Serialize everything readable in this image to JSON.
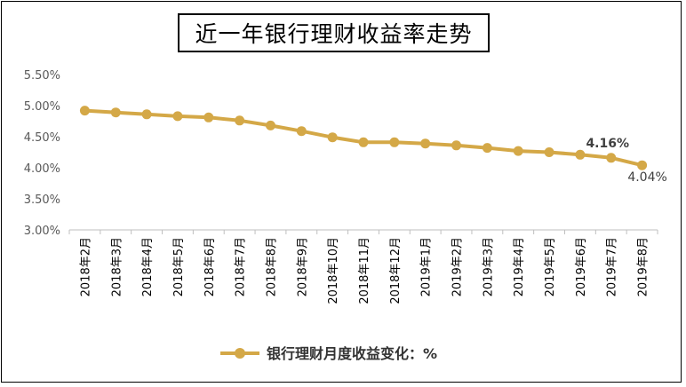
{
  "title": "近一年银行理财收益率走势",
  "chart_data": {
    "type": "line",
    "categories": [
      "2018年2月",
      "2018年3月",
      "2018年4月",
      "2018年5月",
      "2018年6月",
      "2018年7月",
      "2018年8月",
      "2018年9月",
      "2018年10月",
      "2018年11月",
      "2018年12月",
      "2019年1月",
      "2019年2月",
      "2019年3月",
      "2019年4月",
      "2019年5月",
      "2019年6月",
      "2019年7月",
      "2019年8月"
    ],
    "series": [
      {
        "name": "银行理财月度收益变化：%",
        "values": [
          4.92,
          4.89,
          4.86,
          4.83,
          4.81,
          4.76,
          4.68,
          4.59,
          4.49,
          4.41,
          4.41,
          4.39,
          4.36,
          4.32,
          4.27,
          4.25,
          4.21,
          4.16,
          4.04
        ]
      }
    ],
    "ylim": [
      3.0,
      5.5
    ],
    "yticks": [
      "3.00%",
      "3.50%",
      "4.00%",
      "4.50%",
      "5.00%",
      "5.50%"
    ],
    "yticks_values": [
      3.0,
      3.5,
      4.0,
      4.5,
      5.0,
      5.5
    ],
    "data_labels": [
      {
        "index": 17,
        "text": "4.16%",
        "bold": true
      },
      {
        "index": 18,
        "text": "4.04%",
        "bold": false
      }
    ],
    "grid": false,
    "legend_position": "bottom",
    "line_color": "#D4A847"
  }
}
